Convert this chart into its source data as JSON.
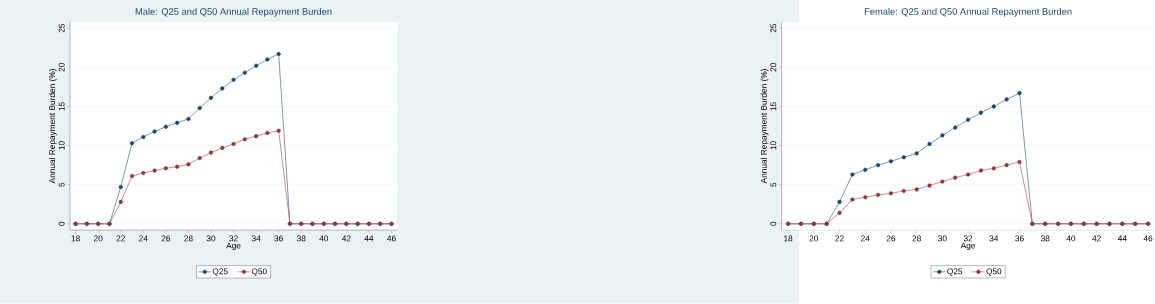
{
  "chart_data": [
    {
      "type": "line",
      "title": "Male: Q25 and Q50 Annual Repayment Burden",
      "xlabel": "Age",
      "ylabel": "Annual Repayment Burden (%)",
      "x": [
        18,
        19,
        20,
        21,
        22,
        23,
        24,
        25,
        26,
        27,
        28,
        29,
        30,
        31,
        32,
        33,
        34,
        35,
        36,
        37,
        38,
        39,
        40,
        41,
        42,
        43,
        44,
        45,
        46
      ],
      "series": [
        {
          "name": "Q25",
          "color": "#1a476f",
          "values": [
            0,
            0,
            0,
            0,
            4.7,
            10.3,
            11.1,
            11.8,
            12.4,
            12.9,
            13.4,
            14.8,
            16.1,
            17.3,
            18.4,
            19.3,
            20.2,
            21.0,
            21.7,
            0,
            0,
            0,
            0,
            0,
            0,
            0,
            0,
            0,
            0
          ]
        },
        {
          "name": "Q50",
          "color": "#90353b",
          "values": [
            0,
            0,
            0,
            0,
            2.8,
            6.1,
            6.5,
            6.8,
            7.1,
            7.3,
            7.6,
            8.4,
            9.1,
            9.7,
            10.2,
            10.8,
            11.2,
            11.6,
            11.9,
            0,
            0,
            0,
            0,
            0,
            0,
            0,
            0,
            0,
            0
          ]
        }
      ],
      "xlim": [
        17.5,
        46.5
      ],
      "ylim": [
        -0.8,
        25.8
      ],
      "xticks": [
        18,
        20,
        22,
        24,
        26,
        28,
        30,
        32,
        34,
        36,
        38,
        40,
        42,
        44,
        46
      ],
      "yticks": [
        0,
        5,
        10,
        15,
        20,
        25
      ],
      "grid": "y",
      "legend": "bottom",
      "marker": "circle",
      "line_style": "solid"
    },
    {
      "type": "line",
      "title": "Female: Q25 and Q50 Annual Repayment Burden",
      "xlabel": "Age",
      "ylabel": "Annual Repayment Burden (%)",
      "x": [
        18,
        19,
        20,
        21,
        22,
        23,
        24,
        25,
        26,
        27,
        28,
        29,
        30,
        31,
        32,
        33,
        34,
        35,
        36,
        37,
        38,
        39,
        40,
        41,
        42,
        43,
        44,
        45,
        46
      ],
      "series": [
        {
          "name": "Q25",
          "color": "#1a476f",
          "values": [
            0,
            0,
            0,
            0,
            2.8,
            6.3,
            6.9,
            7.5,
            8.0,
            8.5,
            9.0,
            10.2,
            11.3,
            12.3,
            13.3,
            14.2,
            15.0,
            15.9,
            16.7,
            0,
            0,
            0,
            0,
            0,
            0,
            0,
            0,
            0,
            0
          ]
        },
        {
          "name": "Q50",
          "color": "#90353b",
          "values": [
            0,
            0,
            0,
            0,
            1.4,
            3.1,
            3.4,
            3.7,
            3.9,
            4.2,
            4.4,
            4.9,
            5.4,
            5.9,
            6.3,
            6.8,
            7.1,
            7.5,
            7.9,
            0,
            0,
            0,
            0,
            0,
            0,
            0,
            0,
            0,
            0
          ]
        }
      ],
      "xlim": [
        17.5,
        46.5
      ],
      "ylim": [
        -0.8,
        25.8
      ],
      "xticks": [
        18,
        20,
        22,
        24,
        26,
        28,
        30,
        32,
        34,
        36,
        38,
        40,
        42,
        44,
        46
      ],
      "yticks": [
        0,
        5,
        10,
        15,
        20,
        25
      ],
      "grid": "y",
      "legend": "bottom",
      "marker": "circle",
      "line_style": "solid"
    }
  ]
}
